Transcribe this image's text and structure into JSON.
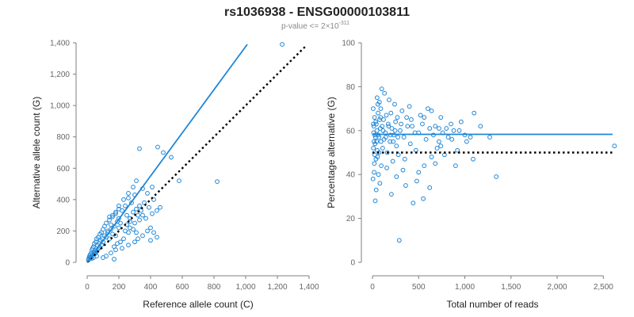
{
  "header": {
    "title": "rs1036938 - ENSG00000103811",
    "pvalue_prefix": "p-value <= 2×10",
    "pvalue_exponent": "-311"
  },
  "colors": {
    "series": "#1f86d6",
    "reference": "#000000",
    "axis": "#7f7f7f",
    "text": "#222222"
  },
  "chart_data": [
    {
      "type": "scatter",
      "xlabel": "Reference allele count (C)",
      "ylabel": "Alternative allele count (G)",
      "xlim": [
        0,
        1400
      ],
      "ylim": [
        0,
        1400
      ],
      "x_ticks": [
        0,
        200,
        400,
        600,
        800,
        1000,
        1200,
        1400
      ],
      "x_tick_labels": [
        "0",
        "200",
        "400",
        "600",
        "800",
        "1,000",
        "1,200",
        "1,400"
      ],
      "y_ticks": [
        0,
        200,
        400,
        600,
        800,
        1000,
        1200,
        1400
      ],
      "y_tick_labels": [
        "0",
        "200",
        "400",
        "600",
        "800",
        "1,000",
        "1,200",
        "1,400"
      ],
      "grid": false,
      "fit_line": {
        "x": [
          0,
          1010
        ],
        "y": [
          0,
          1390
        ]
      },
      "reference_line": {
        "x": [
          0,
          1380
        ],
        "y": [
          0,
          1380
        ],
        "style": "dotted"
      },
      "points": [
        [
          1230,
          1390
        ],
        [
          820,
          515
        ],
        [
          445,
          735
        ],
        [
          330,
          725
        ],
        [
          480,
          700
        ],
        [
          530,
          670
        ],
        [
          580,
          520
        ],
        [
          410,
          480
        ],
        [
          350,
          470
        ],
        [
          380,
          440
        ],
        [
          300,
          430
        ],
        [
          260,
          410
        ],
        [
          280,
          380
        ],
        [
          240,
          360
        ],
        [
          200,
          340
        ],
        [
          220,
          330
        ],
        [
          180,
          310
        ],
        [
          160,
          290
        ],
        [
          200,
          280
        ],
        [
          140,
          270
        ],
        [
          120,
          250
        ],
        [
          150,
          240
        ],
        [
          110,
          230
        ],
        [
          100,
          210
        ],
        [
          130,
          200
        ],
        [
          90,
          190
        ],
        [
          80,
          180
        ],
        [
          70,
          160
        ],
        [
          60,
          150
        ],
        [
          55,
          130
        ],
        [
          45,
          120
        ],
        [
          40,
          100
        ],
        [
          35,
          90
        ],
        [
          30,
          80
        ],
        [
          25,
          60
        ],
        [
          20,
          50
        ],
        [
          15,
          40
        ],
        [
          12,
          30
        ],
        [
          10,
          20
        ],
        [
          8,
          15
        ],
        [
          250,
          300
        ],
        [
          270,
          260
        ],
        [
          300,
          250
        ],
        [
          320,
          300
        ],
        [
          340,
          330
        ],
        [
          360,
          380
        ],
        [
          390,
          350
        ],
        [
          420,
          400
        ],
        [
          400,
          220
        ],
        [
          380,
          200
        ],
        [
          350,
          170
        ],
        [
          320,
          150
        ],
        [
          300,
          130
        ],
        [
          260,
          110
        ],
        [
          220,
          90
        ],
        [
          180,
          80
        ],
        [
          150,
          60
        ],
        [
          120,
          40
        ],
        [
          100,
          30
        ],
        [
          240,
          200
        ],
        [
          200,
          220
        ],
        [
          180,
          170
        ],
        [
          160,
          180
        ],
        [
          140,
          150
        ],
        [
          120,
          160
        ],
        [
          100,
          130
        ],
        [
          90,
          110
        ],
        [
          80,
          95
        ],
        [
          70,
          85
        ],
        [
          60,
          70
        ],
        [
          50,
          55
        ],
        [
          260,
          190
        ],
        [
          290,
          210
        ],
        [
          310,
          190
        ],
        [
          230,
          150
        ],
        [
          210,
          130
        ],
        [
          190,
          120
        ],
        [
          170,
          100
        ],
        [
          250,
          240
        ],
        [
          270,
          220
        ],
        [
          210,
          250
        ],
        [
          190,
          260
        ],
        [
          170,
          230
        ],
        [
          150,
          210
        ],
        [
          130,
          190
        ],
        [
          110,
          170
        ],
        [
          95,
          150
        ],
        [
          85,
          140
        ],
        [
          75,
          120
        ],
        [
          65,
          110
        ],
        [
          330,
          360
        ],
        [
          310,
          340
        ],
        [
          290,
          320
        ],
        [
          270,
          280
        ],
        [
          350,
          300
        ],
        [
          330,
          270
        ],
        [
          410,
          310
        ],
        [
          440,
          330
        ],
        [
          460,
          350
        ],
        [
          370,
          280
        ],
        [
          170,
          20
        ],
        [
          440,
          160
        ],
        [
          400,
          140
        ],
        [
          420,
          190
        ],
        [
          60,
          40
        ],
        [
          40,
          30
        ],
        [
          30,
          25
        ],
        [
          50,
          75
        ],
        [
          45,
          65
        ],
        [
          35,
          50
        ],
        [
          25,
          35
        ],
        [
          20,
          30
        ],
        [
          200,
          360
        ],
        [
          230,
          400
        ],
        [
          260,
          440
        ],
        [
          290,
          480
        ],
        [
          310,
          520
        ],
        [
          180,
          320
        ],
        [
          160,
          300
        ],
        [
          140,
          290
        ]
      ]
    },
    {
      "type": "scatter",
      "xlabel": "Total number of reads",
      "ylabel": "Percentage alternative (G)",
      "xlim": [
        0,
        2600
      ],
      "ylim": [
        0,
        100
      ],
      "x_ticks": [
        0,
        500,
        1000,
        1500,
        2000,
        2500
      ],
      "x_tick_labels": [
        "0",
        "500",
        "1,000",
        "1,500",
        "2,000",
        "2,500"
      ],
      "y_ticks": [
        0,
        20,
        40,
        60,
        80,
        100
      ],
      "y_tick_labels": [
        "0",
        "20",
        "40",
        "60",
        "80",
        "100"
      ],
      "grid": false,
      "fit_line": {
        "x": [
          0,
          2600
        ],
        "y": [
          58.3,
          58.3
        ]
      },
      "reference_line": {
        "x": [
          0,
          2600
        ],
        "y": [
          50,
          50
        ],
        "style": "dotted"
      },
      "points": [
        [
          2620,
          53
        ],
        [
          1340,
          39
        ],
        [
          1270,
          57
        ],
        [
          1170,
          62
        ],
        [
          1100,
          68
        ],
        [
          1090,
          47
        ],
        [
          1020,
          55
        ],
        [
          1000,
          58
        ],
        [
          960,
          64
        ],
        [
          920,
          51
        ],
        [
          900,
          44
        ],
        [
          880,
          60
        ],
        [
          850,
          63
        ],
        [
          820,
          57
        ],
        [
          800,
          61
        ],
        [
          780,
          49
        ],
        [
          760,
          59
        ],
        [
          740,
          66
        ],
        [
          720,
          55
        ],
        [
          700,
          52
        ],
        [
          680,
          62
        ],
        [
          660,
          58
        ],
        [
          640,
          48
        ],
        [
          620,
          61
        ],
        [
          600,
          70
        ],
        [
          580,
          56
        ],
        [
          560,
          44
        ],
        [
          540,
          63
        ],
        [
          520,
          67
        ],
        [
          500,
          41
        ],
        [
          480,
          37
        ],
        [
          460,
          59
        ],
        [
          440,
          27
        ],
        [
          420,
          65
        ],
        [
          400,
          71
        ],
        [
          380,
          62
        ],
        [
          360,
          35
        ],
        [
          340,
          57
        ],
        [
          320,
          69
        ],
        [
          300,
          60
        ],
        [
          290,
          10
        ],
        [
          280,
          49
        ],
        [
          270,
          66
        ],
        [
          260,
          53
        ],
        [
          250,
          64
        ],
        [
          240,
          72
        ],
        [
          230,
          58
        ],
        [
          220,
          46
        ],
        [
          210,
          61
        ],
        [
          200,
          68
        ],
        [
          190,
          55
        ],
        [
          180,
          74
        ],
        [
          170,
          63
        ],
        [
          160,
          50
        ],
        [
          150,
          67
        ],
        [
          140,
          59
        ],
        [
          130,
          77
        ],
        [
          120,
          65
        ],
        [
          110,
          52
        ],
        [
          100,
          79
        ],
        [
          95,
          44
        ],
        [
          90,
          70
        ],
        [
          85,
          61
        ],
        [
          80,
          36
        ],
        [
          75,
          73
        ],
        [
          70,
          57
        ],
        [
          65,
          40
        ],
        [
          60,
          68
        ],
        [
          55,
          48
        ],
        [
          50,
          75
        ],
        [
          45,
          55
        ],
        [
          40,
          33
        ],
        [
          35,
          64
        ],
        [
          30,
          28
        ],
        [
          25,
          58
        ],
        [
          20,
          45
        ],
        [
          15,
          62
        ],
        [
          10,
          52
        ],
        [
          8,
          70
        ],
        [
          6,
          38
        ],
        [
          550,
          29
        ],
        [
          620,
          34
        ],
        [
          470,
          51
        ],
        [
          350,
          47
        ],
        [
          410,
          54
        ],
        [
          330,
          42
        ],
        [
          260,
          39
        ],
        [
          205,
          31
        ],
        [
          155,
          43
        ],
        [
          125,
          56
        ],
        [
          105,
          62
        ],
        [
          88,
          66
        ],
        [
          72,
          50
        ],
        [
          58,
          72
        ],
        [
          48,
          60
        ],
        [
          38,
          47
        ],
        [
          28,
          54
        ],
        [
          22,
          66
        ],
        [
          18,
          41
        ],
        [
          12,
          59
        ],
        [
          680,
          45
        ],
        [
          740,
          53
        ],
        [
          860,
          56
        ],
        [
          940,
          60
        ],
        [
          1060,
          57
        ],
        [
          560,
          66
        ],
        [
          640,
          69
        ],
        [
          720,
          61
        ],
        [
          500,
          59
        ],
        [
          430,
          62
        ],
        [
          370,
          66
        ],
        [
          310,
          63
        ],
        [
          275,
          57
        ],
        [
          245,
          60
        ],
        [
          225,
          55
        ],
        [
          195,
          58
        ],
        [
          175,
          62
        ],
        [
          145,
          57
        ],
        [
          115,
          60
        ],
        [
          92,
          55
        ],
        [
          78,
          65
        ],
        [
          62,
          58
        ],
        [
          52,
          51
        ],
        [
          42,
          63
        ],
        [
          32,
          57
        ],
        [
          24,
          49
        ],
        [
          16,
          55
        ],
        [
          9,
          63
        ]
      ]
    }
  ]
}
